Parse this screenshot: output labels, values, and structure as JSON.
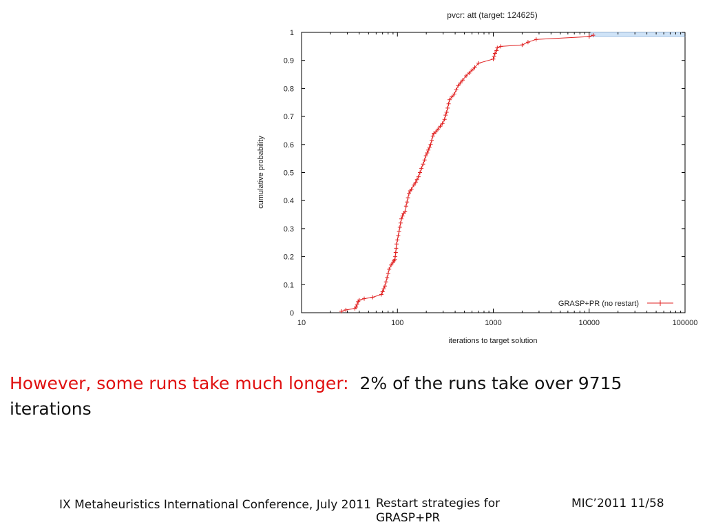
{
  "chart_data": {
    "type": "line",
    "title": "pvcr: att (target: 124625)",
    "xlabel": "iterations to target solution",
    "ylabel": "cumulative probability",
    "xscale": "log",
    "xlim": [
      10,
      100000
    ],
    "ylim": [
      0,
      1
    ],
    "xticks": [
      "10",
      "100",
      "1000",
      "10000",
      "100000"
    ],
    "yticks": [
      "0",
      "0.1",
      "0.2",
      "0.3",
      "0.4",
      "0.5",
      "0.6",
      "0.7",
      "0.8",
      "0.9",
      "1"
    ],
    "grid": false,
    "legend_position": "bottom-right",
    "series": [
      {
        "name": "GRASP+PR (no restart)",
        "color": "#e02020",
        "x": [
          26,
          29,
          36,
          37,
          38,
          39,
          40,
          45,
          55,
          68,
          70,
          72,
          74,
          76,
          78,
          80,
          82,
          86,
          90,
          92,
          94,
          95,
          96,
          97,
          98,
          100,
          102,
          104,
          106,
          108,
          110,
          113,
          116,
          120,
          123,
          126,
          129,
          132,
          136,
          140,
          148,
          155,
          160,
          166,
          172,
          178,
          185,
          192,
          198,
          204,
          210,
          216,
          222,
          228,
          234,
          240,
          252,
          265,
          280,
          295,
          310,
          318,
          326,
          334,
          342,
          350,
          370,
          392,
          410,
          430,
          455,
          480,
          520,
          560,
          600,
          640,
          700,
          1000,
          1020,
          1040,
          1080,
          1100,
          1200,
          2000,
          2300,
          2800,
          10000,
          11000
        ],
        "y": [
          0.005,
          0.01,
          0.015,
          0.02,
          0.03,
          0.04,
          0.045,
          0.05,
          0.055,
          0.065,
          0.075,
          0.085,
          0.095,
          0.11,
          0.125,
          0.14,
          0.155,
          0.17,
          0.18,
          0.185,
          0.19,
          0.2,
          0.215,
          0.23,
          0.245,
          0.26,
          0.275,
          0.29,
          0.305,
          0.32,
          0.335,
          0.345,
          0.355,
          0.36,
          0.38,
          0.395,
          0.41,
          0.425,
          0.435,
          0.44,
          0.455,
          0.465,
          0.475,
          0.485,
          0.5,
          0.515,
          0.53,
          0.545,
          0.56,
          0.57,
          0.58,
          0.59,
          0.6,
          0.615,
          0.63,
          0.64,
          0.645,
          0.655,
          0.665,
          0.675,
          0.69,
          0.705,
          0.715,
          0.73,
          0.745,
          0.76,
          0.77,
          0.78,
          0.795,
          0.81,
          0.82,
          0.83,
          0.845,
          0.855,
          0.865,
          0.875,
          0.89,
          0.905,
          0.915,
          0.925,
          0.935,
          0.945,
          0.95,
          0.955,
          0.965,
          0.975,
          0.985,
          0.99
        ]
      }
    ]
  },
  "caption": {
    "red_text": "However, some runs take much longer:",
    "black_text": "2% of the runs take over 9715 iterations"
  },
  "footer": {
    "left": "IX Metaheuristics International Conference, July 2011",
    "center": "Restart strategies for GRASP+PR",
    "right": "MIC’2011 11/58"
  }
}
